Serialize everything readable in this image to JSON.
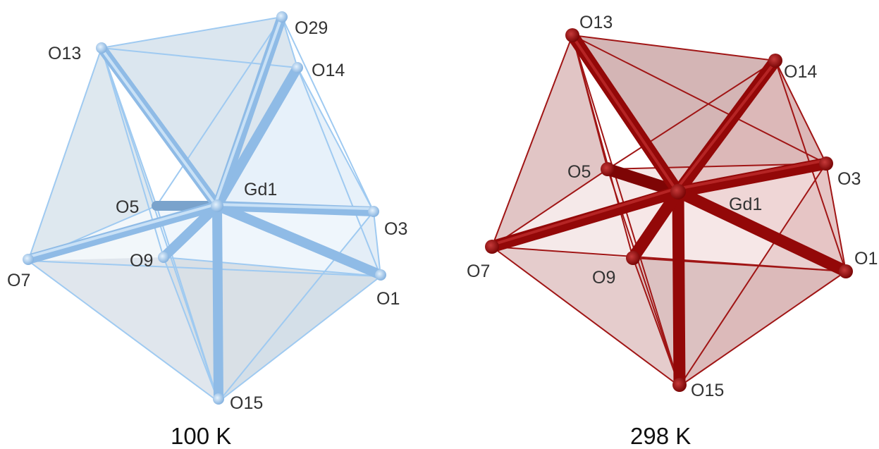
{
  "panels": [
    {
      "caption": "100 K",
      "center_label": "Gd1",
      "atom_labels": {
        "o13": "O13",
        "o29": "O29",
        "o14": "O14",
        "o5": "O5",
        "o3": "O3",
        "o7": "O7",
        "o9": "O9",
        "o1": "O1",
        "o15": "O15"
      },
      "bond_color": "#9ec8ee",
      "face_color": "#c9daea"
    },
    {
      "caption": "298 K",
      "center_label": "Gd1",
      "atom_labels": {
        "o13": "O13",
        "o14": "O14",
        "o5": "O5",
        "o3": "O3",
        "o7": "O7",
        "o9": "O9",
        "o1": "O1",
        "o15": "O15"
      },
      "bond_color": "#9b0a0a",
      "face_color": "#d9a0a0"
    }
  ]
}
